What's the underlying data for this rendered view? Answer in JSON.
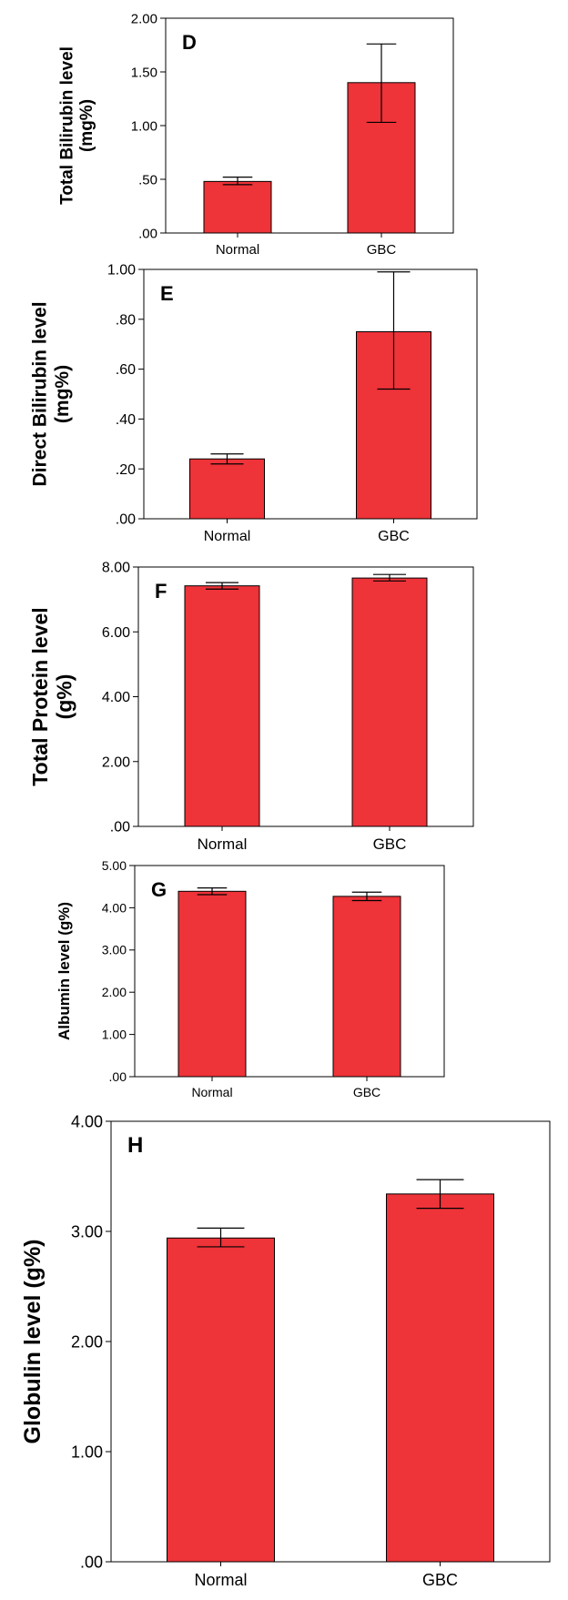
{
  "chart_data": [
    {
      "type": "bar",
      "panel_label": "D",
      "ylabel_line1": "Total Bilirubin level",
      "ylabel_line2": "(mg%)",
      "categories": [
        "Normal",
        "GBC"
      ],
      "values": [
        0.48,
        1.4
      ],
      "error_low": [
        0.45,
        1.03
      ],
      "error_high": [
        0.52,
        1.76
      ],
      "ylim": [
        0,
        2.0
      ],
      "yticks": [
        ".00",
        ".50",
        "1.00",
        "1.50",
        "2.00"
      ],
      "bar_color": "#ee3339"
    },
    {
      "type": "bar",
      "panel_label": "E",
      "ylabel_line1": "Direct Bilirubin level",
      "ylabel_line2": "(mg%)",
      "categories": [
        "Normal",
        "GBC"
      ],
      "values": [
        0.24,
        0.75
      ],
      "error_low": [
        0.22,
        0.52
      ],
      "error_high": [
        0.26,
        0.99
      ],
      "ylim": [
        0,
        1.0
      ],
      "yticks": [
        ".00",
        ".20",
        ".40",
        ".60",
        ".80",
        "1.00"
      ],
      "bar_color": "#ee3339"
    },
    {
      "type": "bar",
      "panel_label": "F",
      "ylabel_line1": "Total Protein level",
      "ylabel_line2": "(g%)",
      "categories": [
        "Normal",
        "GBC"
      ],
      "values": [
        7.42,
        7.66
      ],
      "error_low": [
        7.32,
        7.57
      ],
      "error_high": [
        7.52,
        7.77
      ],
      "ylim": [
        0,
        8.0
      ],
      "yticks": [
        ".00",
        "2.00",
        "4.00",
        "6.00",
        "8.00"
      ],
      "bar_color": "#ee3339"
    },
    {
      "type": "bar",
      "panel_label": "G",
      "ylabel_line1": "Albumin level (g%)",
      "ylabel_line2": "",
      "categories": [
        "Normal",
        "GBC"
      ],
      "values": [
        4.39,
        4.27
      ],
      "error_low": [
        4.31,
        4.17
      ],
      "error_high": [
        4.47,
        4.37
      ],
      "ylim": [
        0,
        5.0
      ],
      "yticks": [
        ".00",
        "1.00",
        "2.00",
        "3.00",
        "4.00",
        "5.00"
      ],
      "bar_color": "#ee3339"
    },
    {
      "type": "bar",
      "panel_label": "H",
      "ylabel_line1": "Globulin level (g%)",
      "ylabel_line2": "",
      "categories": [
        "Normal",
        "GBC"
      ],
      "values": [
        2.94,
        3.34
      ],
      "error_low": [
        2.86,
        3.21
      ],
      "error_high": [
        3.03,
        3.47
      ],
      "ylim": [
        0,
        4.0
      ],
      "yticks": [
        ".00",
        "1.00",
        "2.00",
        "3.00",
        "4.00"
      ],
      "bar_color": "#ee3339"
    }
  ]
}
